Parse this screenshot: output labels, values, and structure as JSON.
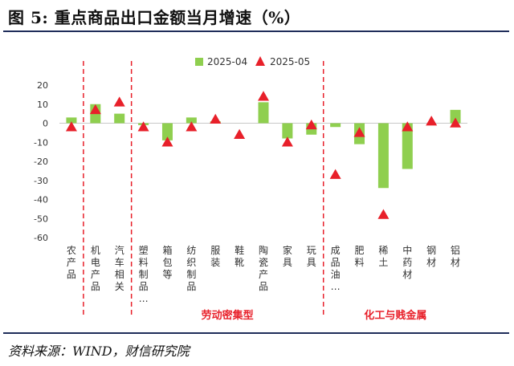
{
  "title": "图 5:  重点商品出口金额当月增速（%）",
  "source": "资料来源：WIND，财信研究院",
  "chart_data": {
    "type": "bar",
    "categories": [
      "农产品",
      "机电产品",
      "汽车相关",
      "塑料制品…",
      "箱包等",
      "纺织制品",
      "服装",
      "鞋靴",
      "陶瓷产品",
      "家具",
      "玩具",
      "成品油…",
      "肥料",
      "稀土",
      "中药材",
      "钢材",
      "铝材"
    ],
    "series": [
      {
        "name": "2025-04",
        "kind": "bar",
        "color": "#8fcf4f",
        "values": [
          3,
          10,
          5,
          -1,
          -9,
          3,
          1,
          0,
          11,
          -8,
          -6,
          -2,
          -11,
          -34,
          -24,
          0,
          7
        ]
      },
      {
        "name": "2025-05",
        "kind": "marker",
        "color": "#e8202a",
        "values": [
          -2,
          7,
          11,
          -2,
          -10,
          -2,
          2,
          -6,
          14,
          -10,
          -1,
          -27,
          -5,
          -48,
          -2,
          1,
          0
        ]
      }
    ],
    "ylim": [
      -60,
      20
    ],
    "yticks": [
      20,
      10,
      0,
      -10,
      -20,
      -30,
      -40,
      -50,
      -60
    ],
    "groups": [
      {
        "label": "劳动密集型",
        "from": 3,
        "to": 10
      },
      {
        "label": "化工与贱金属",
        "from": 11,
        "to": 16
      }
    ],
    "legend_position": "top"
  }
}
